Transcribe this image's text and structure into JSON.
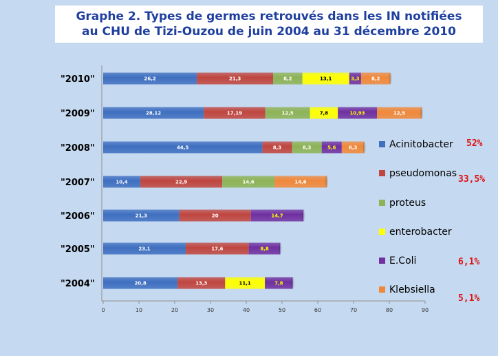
{
  "title": {
    "line1": "Graphe 2. Types de germes retrouvés dans les IN notifiées",
    "line2": "au CHU de Tizi-Ouzou de juin 2004 au 31 décembre 2010"
  },
  "chart_data": {
    "type": "bar",
    "orientation": "horizontal",
    "stacked": true,
    "categories": [
      "\"2010\"",
      "\"2009\"",
      "\"2008\"",
      "\"2007\"",
      "\"2006\"",
      "\"2005\"",
      "\"2004\""
    ],
    "series": [
      {
        "name": "Acinitobacter",
        "color": "#3f6fc0",
        "values": [
          26.2,
          28.12,
          44.5,
          10.4,
          21.3,
          23.1,
          20.8
        ],
        "labels": [
          "26,2",
          "28,12",
          "44,5",
          "10,4",
          "21,3",
          "23,1",
          "20,8"
        ]
      },
      {
        "name": "pseudomonas",
        "color": "#c0463f",
        "values": [
          21.3,
          17.19,
          8.3,
          22.9,
          20,
          17.6,
          13.3
        ],
        "labels": [
          "21,3",
          "17,19",
          "8,3",
          "22,9",
          "20",
          "17,6",
          "13,3"
        ]
      },
      {
        "name": "proteus",
        "color": "#8db356",
        "values": [
          8.2,
          12.5,
          8.3,
          14.6,
          null,
          null,
          null
        ],
        "labels": [
          "8,2",
          "12,5",
          "8,3",
          "14,6",
          null,
          null,
          null
        ]
      },
      {
        "name": "enterobacter",
        "color": "#ffff00",
        "values": [
          13.1,
          7.8,
          null,
          null,
          null,
          null,
          11.1
        ],
        "labels": [
          "13,1",
          "7,8",
          null,
          null,
          null,
          null,
          "11,1"
        ]
      },
      {
        "name": "E.Coli",
        "color": "#7030a0",
        "values": [
          3.3,
          10.93,
          5.6,
          null,
          14.7,
          8.8,
          7.8
        ],
        "labels": [
          "3,3",
          "10,93",
          "5,6",
          null,
          "14,7",
          "8,8",
          "7,8"
        ]
      },
      {
        "name": "Klebsiella",
        "color": "#f0883a",
        "values": [
          8.2,
          12.5,
          6.3,
          14.6,
          null,
          null,
          null
        ],
        "labels": [
          "8,2",
          "12,5",
          "6,3",
          "14,6",
          null,
          null,
          null
        ]
      }
    ],
    "xlim": [
      0,
      90
    ],
    "xticks": [
      "0",
      "10",
      "20",
      "30",
      "40",
      "50",
      "60",
      "70",
      "80",
      "90"
    ],
    "legend_position": "right",
    "legend_percentages": [
      "52%",
      "33,5%",
      "",
      "",
      "6,1%",
      "5,1%"
    ]
  }
}
